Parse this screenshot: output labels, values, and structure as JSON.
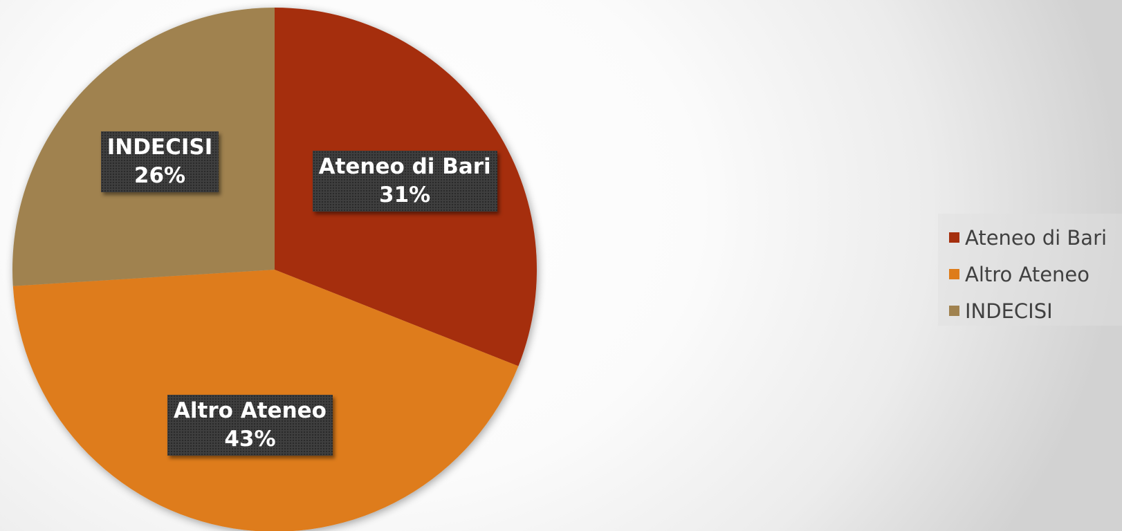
{
  "chart_data": {
    "type": "pie",
    "categories": [
      "Ateneo di Bari",
      "Altro Ateneo",
      "INDECISI"
    ],
    "values": [
      31,
      43,
      26
    ],
    "labels": [
      "31%",
      "43%",
      "26%"
    ],
    "colors": [
      "#A52F0E",
      "#DE7C1A",
      "#A0824F"
    ],
    "start_angle_deg": 0,
    "direction": "clockwise",
    "legend_position": "right",
    "data_label_style": "dark-box"
  },
  "legend": {
    "items": [
      {
        "label": "Ateneo di Bari",
        "color": "#A52F0E"
      },
      {
        "label": "Altro Ateneo",
        "color": "#DE7C1A"
      },
      {
        "label": "INDECISI",
        "color": "#A0824F"
      }
    ]
  }
}
